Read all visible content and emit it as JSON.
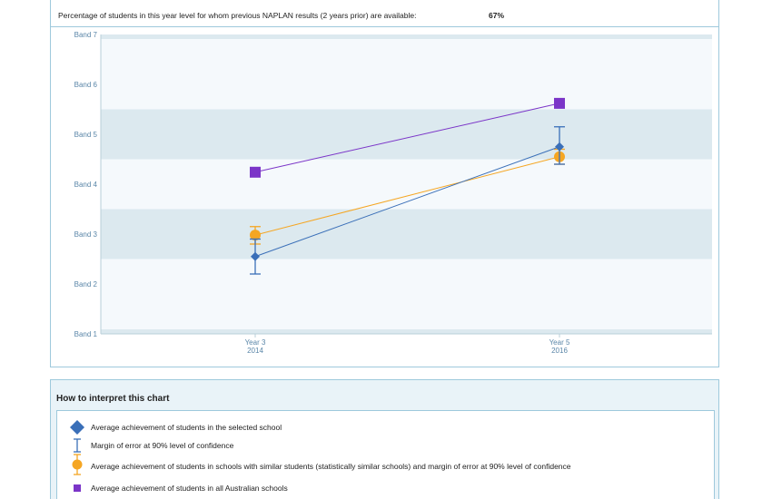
{
  "header": {
    "label": "Percentage of students in this year level for whom previous NAPLAN results (2 years prior) are available:",
    "value": "67%"
  },
  "legend": {
    "title": "How to interpret this chart",
    "items": [
      {
        "key": "school",
        "label": "Average achievement of students in the selected school",
        "icon": "diamond-icon",
        "color": "#3a6fb8"
      },
      {
        "key": "error",
        "label": "Margin of error at 90% level of confidence",
        "icon": "error-bar-icon",
        "color": "#3a6fb8"
      },
      {
        "key": "similar",
        "label": "Average achievement of students in schools with similar students (statistically similar schools) and margin of error at 90% level of confidence",
        "icon": "circle-icon",
        "color": "#f5a623"
      },
      {
        "key": "australia",
        "label": "Average achievement of students in all Australian schools",
        "icon": "square-icon",
        "color": "#7b35c8"
      }
    ]
  },
  "chart_data": {
    "type": "line",
    "categories": [
      [
        "Year 3",
        "2014"
      ],
      [
        "Year 5",
        "2016"
      ]
    ],
    "y_tick_labels": [
      "Band 1",
      "Band 2",
      "Band 3",
      "Band 4",
      "Band 5",
      "Band 6",
      "Band 7"
    ],
    "y_units": "band",
    "ylim": [
      1,
      7
    ],
    "shaded_bands": [
      [
        2.5,
        3.5
      ],
      [
        4.5,
        5.5
      ]
    ],
    "series": [
      {
        "key": "school",
        "color": "#3a6fb8",
        "marker": "diamond",
        "values": [
          2.55,
          4.75
        ],
        "error_low": [
          2.2,
          4.4
        ],
        "error_high": [
          2.9,
          5.15
        ]
      },
      {
        "key": "similar",
        "color": "#f5a623",
        "marker": "circle",
        "values": [
          2.98,
          4.55
        ],
        "error_low": [
          2.8,
          4.4
        ],
        "error_high": [
          3.15,
          4.7
        ]
      },
      {
        "key": "australia",
        "color": "#7b35c8",
        "marker": "square",
        "values": [
          4.24,
          5.62
        ]
      }
    ]
  }
}
